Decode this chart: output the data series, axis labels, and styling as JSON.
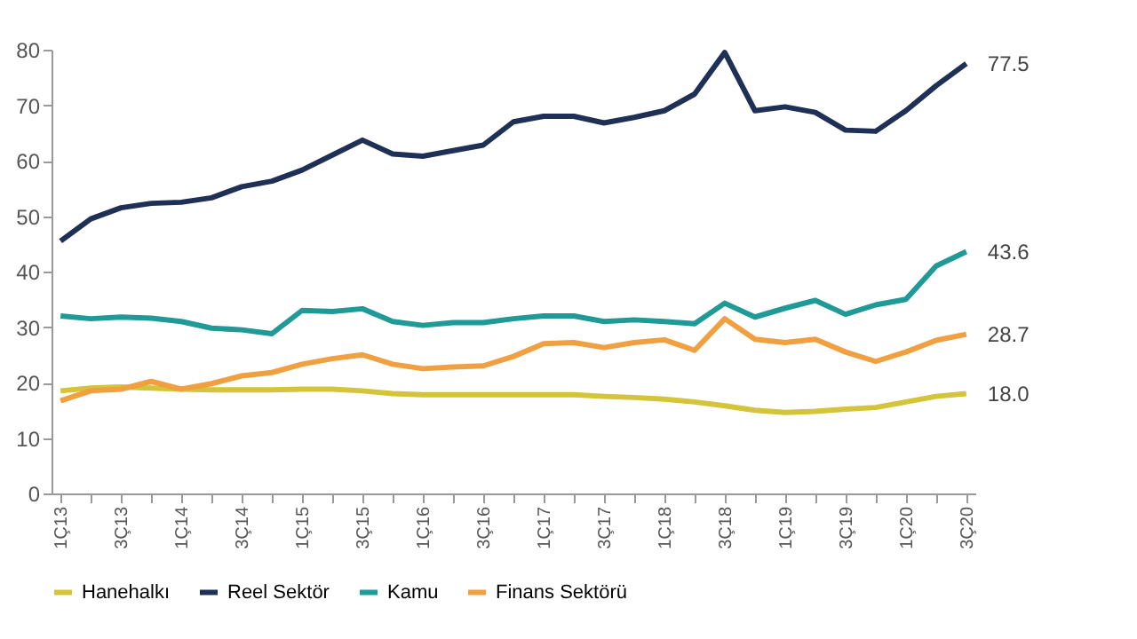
{
  "chart_data": {
    "type": "line",
    "categories": [
      "1Ç13",
      null,
      "3Ç13",
      null,
      "1Ç14",
      null,
      "3Ç14",
      null,
      "1Ç15",
      null,
      "3Ç15",
      null,
      "1Ç16",
      null,
      "3Ç16",
      null,
      "1Ç17",
      null,
      "3Ç17",
      null,
      "1Ç18",
      null,
      "3Ç18",
      null,
      "1Ç19",
      null,
      "3Ç19",
      null,
      "1Ç20",
      null,
      "3Ç20"
    ],
    "series": [
      {
        "name": "Hanehalkı",
        "color": "#d4c43a",
        "values": [
          18.5,
          19,
          19.2,
          19,
          18.8,
          18.7,
          18.7,
          18.7,
          18.8,
          18.8,
          18.5,
          18,
          17.8,
          17.8,
          17.8,
          17.8,
          17.8,
          17.8,
          17.5,
          17.3,
          17,
          16.5,
          15.8,
          15,
          14.6,
          14.8,
          15.2,
          15.5,
          16.5,
          17.5,
          18.0
        ],
        "value_labels": [
          null,
          null,
          null,
          null,
          null,
          null,
          null,
          null,
          null,
          null,
          null,
          null,
          null,
          null,
          null,
          null,
          null,
          null,
          null,
          null,
          null,
          null,
          null,
          null,
          null,
          null,
          null,
          null,
          null,
          null,
          "18.0"
        ]
      },
      {
        "name": "Reel Sektör",
        "color": "#1f3057",
        "values": [
          45.5,
          49.5,
          51.5,
          52.3,
          52.5,
          53.3,
          55.3,
          56.3,
          58.3,
          61,
          63.7,
          61.2,
          60.8,
          61.8,
          62.8,
          67,
          68,
          68,
          66.8,
          67.8,
          69,
          72,
          79.5,
          69,
          69.7,
          68.7,
          65.5,
          65.3,
          69,
          73.5,
          77.5
        ],
        "value_labels": [
          null,
          null,
          null,
          null,
          null,
          null,
          null,
          null,
          null,
          null,
          null,
          null,
          null,
          null,
          null,
          null,
          null,
          null,
          null,
          null,
          null,
          null,
          null,
          null,
          null,
          null,
          null,
          null,
          null,
          null,
          "77.5"
        ]
      },
      {
        "name": "Kamu",
        "color": "#1f9a97",
        "values": [
          32,
          31.5,
          31.8,
          31.6,
          31,
          29.8,
          29.5,
          28.8,
          33,
          32.8,
          33.3,
          31,
          30.3,
          30.8,
          30.8,
          31.5,
          32,
          32,
          31,
          31.3,
          31,
          30.6,
          34.3,
          31.8,
          33.4,
          34.8,
          32.3,
          34,
          35,
          41,
          43.6
        ],
        "value_labels": [
          null,
          null,
          null,
          null,
          null,
          null,
          null,
          null,
          null,
          null,
          null,
          null,
          null,
          null,
          null,
          null,
          null,
          null,
          null,
          null,
          null,
          null,
          null,
          null,
          null,
          null,
          null,
          null,
          null,
          null,
          "43.6"
        ]
      },
      {
        "name": "Finans Sektörü",
        "color": "#f0a040",
        "values": [
          16.7,
          18.5,
          18.8,
          20.2,
          18.8,
          19.8,
          21.2,
          21.8,
          23.3,
          24.3,
          25,
          23.3,
          22.5,
          22.8,
          23,
          24.7,
          27,
          27.2,
          26.3,
          27.2,
          27.7,
          25.8,
          31.5,
          27.8,
          27.2,
          27.8,
          25.5,
          23.8,
          25.5,
          27.6,
          28.7
        ],
        "value_labels": [
          null,
          null,
          null,
          null,
          null,
          null,
          null,
          null,
          null,
          null,
          null,
          null,
          null,
          null,
          null,
          null,
          null,
          null,
          null,
          null,
          null,
          null,
          null,
          null,
          null,
          null,
          null,
          null,
          null,
          null,
          "28.7"
        ]
      }
    ],
    "ylim": [
      0,
      80
    ],
    "yticks": [
      0,
      10,
      20,
      30,
      40,
      50,
      60,
      70,
      80
    ],
    "legend": "bottom"
  }
}
